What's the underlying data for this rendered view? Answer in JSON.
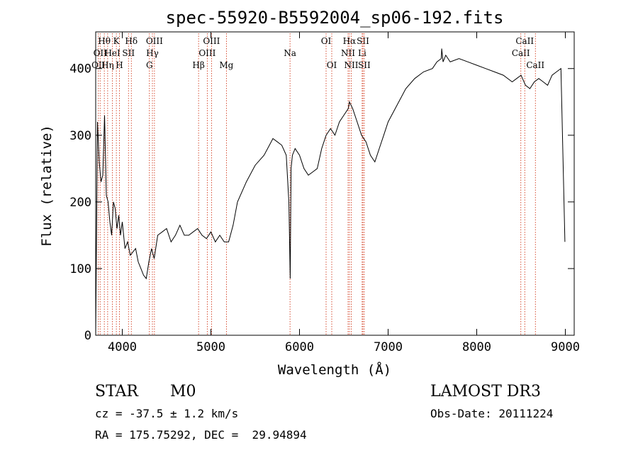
{
  "chart_data": {
    "type": "line",
    "title": "spec-55920-B5592004_sp06-192.fits",
    "xlabel": "Wavelength (Å)",
    "ylabel": "Flux (relative)",
    "xlim": [
      3700,
      9100
    ],
    "ylim": [
      0,
      455
    ],
    "x_ticks": [
      4000,
      5000,
      6000,
      7000,
      8000,
      9000
    ],
    "y_ticks": [
      0,
      100,
      200,
      300,
      400
    ],
    "line_color": "#000000",
    "marker_color": "#cc2200",
    "series": [
      {
        "x": [
          3700,
          3720,
          3740,
          3760,
          3780,
          3800,
          3820,
          3840,
          3860,
          3880,
          3900,
          3920,
          3940,
          3960,
          3980,
          4000,
          4030,
          4060,
          4090,
          4120,
          4150,
          4180,
          4210,
          4240,
          4270,
          4300,
          4330,
          4360,
          4400,
          4450,
          4500,
          4550,
          4600,
          4650,
          4700,
          4750,
          4800,
          4850,
          4900,
          4950,
          5000,
          5050,
          5100,
          5150,
          5200,
          5250,
          5300,
          5400,
          5500,
          5600,
          5700,
          5750,
          5800,
          5850,
          5880,
          5895,
          5905,
          5920,
          5950,
          6000,
          6050,
          6100,
          6150,
          6200,
          6250,
          6300,
          6350,
          6400,
          6450,
          6500,
          6550,
          6563,
          6600,
          6650,
          6700,
          6750,
          6800,
          6850,
          6900,
          6950,
          7000,
          7100,
          7200,
          7300,
          7400,
          7500,
          7550,
          7600,
          7605,
          7620,
          7650,
          7700,
          7800,
          7900,
          8000,
          8100,
          8200,
          8300,
          8400,
          8450,
          8500,
          8550,
          8600,
          8650,
          8700,
          8750,
          8800,
          8850,
          8900,
          8950,
          8995
        ],
        "values": [
          0,
          320,
          260,
          230,
          240,
          330,
          210,
          200,
          170,
          150,
          200,
          190,
          160,
          180,
          150,
          170,
          130,
          140,
          120,
          125,
          130,
          110,
          100,
          90,
          85,
          110,
          130,
          115,
          150,
          155,
          160,
          140,
          150,
          165,
          150,
          150,
          155,
          160,
          150,
          145,
          155,
          140,
          150,
          140,
          140,
          165,
          200,
          230,
          255,
          270,
          295,
          290,
          285,
          270,
          200,
          85,
          250,
          270,
          280,
          270,
          250,
          240,
          245,
          250,
          280,
          300,
          310,
          300,
          320,
          330,
          340,
          350,
          340,
          320,
          300,
          290,
          270,
          260,
          280,
          300,
          320,
          345,
          370,
          385,
          395,
          400,
          410,
          415,
          430,
          410,
          420,
          410,
          415,
          410,
          405,
          400,
          395,
          390,
          380,
          385,
          390,
          375,
          370,
          380,
          385,
          380,
          375,
          390,
          395,
          400,
          140
        ]
      }
    ],
    "line_markers": [
      {
        "x": 3730,
        "row": 2,
        "label": "OII"
      },
      {
        "x": 3750,
        "row": 1,
        "label": "OII"
      },
      {
        "x": 3797,
        "row": 0,
        "label": "Hθ"
      },
      {
        "x": 3835,
        "row": 2,
        "label": "Hη"
      },
      {
        "x": 3889,
        "row": 1,
        "label": "HeI"
      },
      {
        "x": 3933,
        "row": 0,
        "label": "K"
      },
      {
        "x": 3968,
        "row": 2,
        "label": "H"
      },
      {
        "x": 4070,
        "row": 1,
        "label": "SII"
      },
      {
        "x": 4102,
        "row": 0,
        "label": "Hδ"
      },
      {
        "x": 4306,
        "row": 2,
        "label": "G"
      },
      {
        "x": 4340,
        "row": 1,
        "label": "Hγ"
      },
      {
        "x": 4363,
        "row": 0,
        "label": "OIII"
      },
      {
        "x": 4861,
        "row": 2,
        "label": "Hβ"
      },
      {
        "x": 4959,
        "row": 1,
        "label": "OIII"
      },
      {
        "x": 5007,
        "row": 0,
        "label": "OIII"
      },
      {
        "x": 5175,
        "row": 2,
        "label": "Mg"
      },
      {
        "x": 5893,
        "row": 1,
        "label": "Na"
      },
      {
        "x": 6300,
        "row": 0,
        "label": "OI"
      },
      {
        "x": 6364,
        "row": 2,
        "label": "OI"
      },
      {
        "x": 6548,
        "row": 1,
        "label": "NII"
      },
      {
        "x": 6563,
        "row": 0,
        "label": "Hα"
      },
      {
        "x": 6584,
        "row": 2,
        "label": "NII"
      },
      {
        "x": 6707,
        "row": 1,
        "label": "Li"
      },
      {
        "x": 6716,
        "row": 0,
        "label": "SII"
      },
      {
        "x": 6731,
        "row": 2,
        "label": "SII"
      },
      {
        "x": 8498,
        "row": 1,
        "label": "CaII"
      },
      {
        "x": 8542,
        "row": 0,
        "label": "CaII"
      },
      {
        "x": 8662,
        "row": 2,
        "label": "CaII"
      }
    ]
  },
  "info": {
    "class": "STAR",
    "subclass": "M0",
    "survey": "LAMOST DR3",
    "cz": "cz = -37.5 ± 1.2 km/s",
    "obs_date": "Obs-Date: 20111224",
    "radec": "RA = 175.75292, DEC =  29.94894"
  }
}
